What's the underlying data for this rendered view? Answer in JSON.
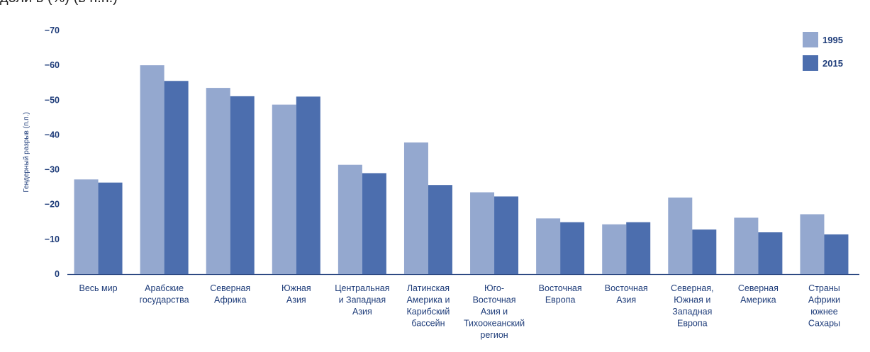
{
  "header": {
    "partial_title": "доли в (%) (в п.п.)"
  },
  "chart_data": {
    "type": "bar",
    "ylabel": "Гендерный разрыв (п.п.)",
    "ylim": [
      0,
      -70
    ],
    "yticks": [
      "−70",
      "−60",
      "−50",
      "−40",
      "−30",
      "−20",
      "−10",
      "0"
    ],
    "ytick_values": [
      -70,
      -60,
      -50,
      -40,
      -30,
      -20,
      -10,
      0
    ],
    "grid": false,
    "legend_position": "top-right",
    "categories": [
      [
        "Весь мир"
      ],
      [
        "Арабские",
        "государства"
      ],
      [
        "Северная",
        "Африка"
      ],
      [
        "Южная",
        "Азия"
      ],
      [
        "Центральная",
        "и Западная",
        "Азия"
      ],
      [
        "Латинская",
        "Америка и",
        "Карибский",
        "бассейн"
      ],
      [
        "Юго-",
        "Восточная",
        "Азия и",
        "Тихоокеанский",
        "регион"
      ],
      [
        "Восточная",
        "Европа"
      ],
      [
        "Восточная",
        "Азия"
      ],
      [
        "Северная,",
        "Южная и",
        "Западная",
        "Европа"
      ],
      [
        "Северная",
        "Америка"
      ],
      [
        "Страны",
        "Африки",
        "южнее",
        "Сахары"
      ]
    ],
    "series": [
      {
        "name": "1995",
        "color": "#94a8cf",
        "values": [
          -27.2,
          -60,
          -53.5,
          -48.7,
          -31.4,
          -37.8,
          -23.5,
          -16,
          -14.3,
          -22,
          -16.2,
          -17.2
        ]
      },
      {
        "name": "2015",
        "color": "#4c6eae",
        "values": [
          -26.3,
          -55.5,
          -51.1,
          -51,
          -29,
          -25.6,
          -22.3,
          -14.9,
          -14.9,
          -12.8,
          -12,
          -11.4
        ]
      }
    ]
  }
}
